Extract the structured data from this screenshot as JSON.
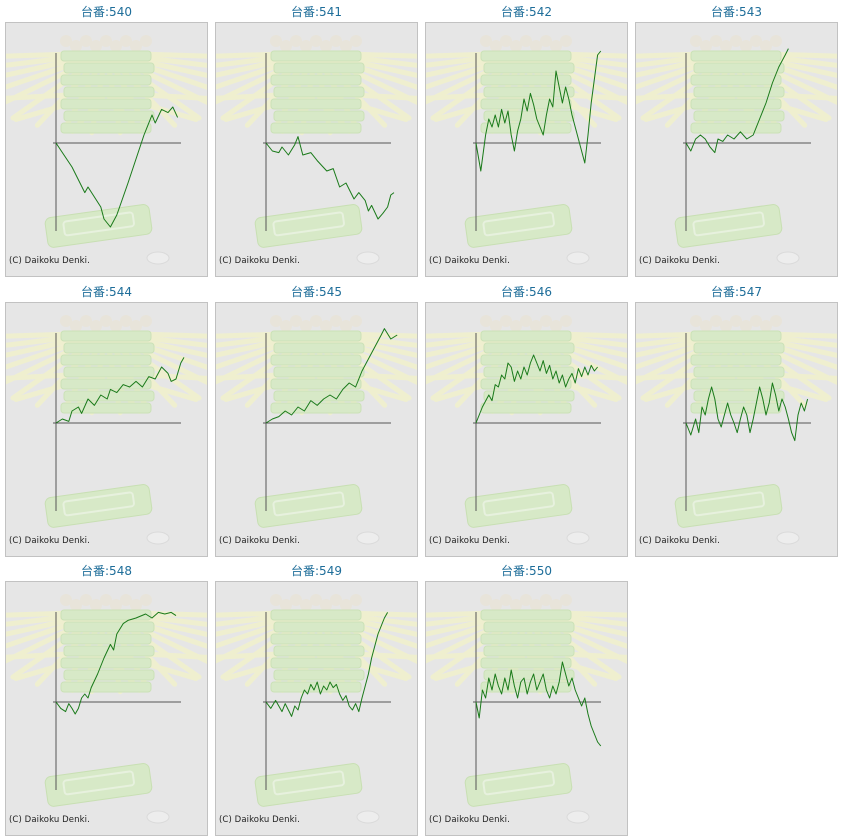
{
  "credit_text": "(C) Daikoku Denki.",
  "colors": {
    "line": "#1a7a1a",
    "axis": "#555555",
    "title": "#1f6e9a",
    "background": "#e6e6e6"
  },
  "chart_data": [
    {
      "type": "line",
      "title": "台番:540",
      "points": [
        [
          0,
          0
        ],
        [
          0.04,
          -0.12
        ],
        [
          0.1,
          -0.3
        ],
        [
          0.18,
          -0.62
        ],
        [
          0.2,
          -0.55
        ],
        [
          0.28,
          -0.8
        ],
        [
          0.3,
          -0.95
        ],
        [
          0.34,
          -1.05
        ],
        [
          0.38,
          -0.9
        ],
        [
          0.45,
          -0.5
        ],
        [
          0.5,
          -0.2
        ],
        [
          0.55,
          0.1
        ],
        [
          0.6,
          0.35
        ],
        [
          0.62,
          0.25
        ],
        [
          0.66,
          0.42
        ],
        [
          0.7,
          0.38
        ],
        [
          0.73,
          0.45
        ],
        [
          0.76,
          0.32
        ]
      ]
    },
    {
      "type": "line",
      "title": "台番:541",
      "points": [
        [
          0,
          0
        ],
        [
          0.04,
          -0.1
        ],
        [
          0.08,
          -0.12
        ],
        [
          0.1,
          -0.05
        ],
        [
          0.14,
          -0.15
        ],
        [
          0.18,
          -0.02
        ],
        [
          0.2,
          0.08
        ],
        [
          0.23,
          -0.15
        ],
        [
          0.28,
          -0.12
        ],
        [
          0.32,
          -0.22
        ],
        [
          0.38,
          -0.35
        ],
        [
          0.42,
          -0.32
        ],
        [
          0.46,
          -0.55
        ],
        [
          0.5,
          -0.5
        ],
        [
          0.55,
          -0.7
        ],
        [
          0.58,
          -0.62
        ],
        [
          0.62,
          -0.72
        ],
        [
          0.64,
          -0.85
        ],
        [
          0.66,
          -0.78
        ],
        [
          0.7,
          -0.95
        ],
        [
          0.73,
          -0.88
        ],
        [
          0.76,
          -0.8
        ],
        [
          0.78,
          -0.65
        ],
        [
          0.8,
          -0.62
        ]
      ]
    },
    {
      "type": "line",
      "title": "台番:542",
      "points": [
        [
          0,
          0
        ],
        [
          0.03,
          -0.35
        ],
        [
          0.06,
          0.1
        ],
        [
          0.08,
          0.3
        ],
        [
          0.1,
          0.2
        ],
        [
          0.12,
          0.35
        ],
        [
          0.14,
          0.2
        ],
        [
          0.16,
          0.42
        ],
        [
          0.18,
          0.25
        ],
        [
          0.2,
          0.4
        ],
        [
          0.22,
          0.1
        ],
        [
          0.24,
          -0.1
        ],
        [
          0.26,
          0.15
        ],
        [
          0.28,
          0.3
        ],
        [
          0.3,
          0.55
        ],
        [
          0.32,
          0.4
        ],
        [
          0.34,
          0.62
        ],
        [
          0.36,
          0.48
        ],
        [
          0.38,
          0.3
        ],
        [
          0.4,
          0.2
        ],
        [
          0.42,
          0.1
        ],
        [
          0.44,
          0.35
        ],
        [
          0.46,
          0.55
        ],
        [
          0.48,
          0.45
        ],
        [
          0.5,
          0.9
        ],
        [
          0.52,
          0.7
        ],
        [
          0.54,
          0.5
        ],
        [
          0.56,
          0.7
        ],
        [
          0.58,
          0.55
        ],
        [
          0.6,
          0.35
        ],
        [
          0.62,
          0.2
        ],
        [
          0.64,
          0.05
        ],
        [
          0.66,
          -0.1
        ],
        [
          0.68,
          -0.25
        ],
        [
          0.7,
          0.1
        ],
        [
          0.72,
          0.5
        ],
        [
          0.74,
          0.8
        ],
        [
          0.76,
          1.1
        ],
        [
          0.78,
          1.15
        ]
      ]
    },
    {
      "type": "line",
      "title": "台番:543",
      "points": [
        [
          0,
          0
        ],
        [
          0.03,
          -0.1
        ],
        [
          0.06,
          0.05
        ],
        [
          0.09,
          0.1
        ],
        [
          0.12,
          0.05
        ],
        [
          0.15,
          -0.05
        ],
        [
          0.18,
          -0.12
        ],
        [
          0.2,
          0.05
        ],
        [
          0.23,
          0.02
        ],
        [
          0.26,
          0.1
        ],
        [
          0.3,
          0.05
        ],
        [
          0.34,
          0.14
        ],
        [
          0.38,
          0.05
        ],
        [
          0.42,
          0.1
        ],
        [
          0.46,
          0.3
        ],
        [
          0.5,
          0.5
        ],
        [
          0.54,
          0.75
        ],
        [
          0.58,
          0.95
        ],
        [
          0.62,
          1.1
        ],
        [
          0.64,
          1.18
        ]
      ]
    },
    {
      "type": "line",
      "title": "台番:544",
      "points": [
        [
          0,
          0
        ],
        [
          0.04,
          0.05
        ],
        [
          0.08,
          0.02
        ],
        [
          0.1,
          0.15
        ],
        [
          0.14,
          0.2
        ],
        [
          0.16,
          0.12
        ],
        [
          0.2,
          0.3
        ],
        [
          0.24,
          0.22
        ],
        [
          0.28,
          0.35
        ],
        [
          0.32,
          0.3
        ],
        [
          0.34,
          0.42
        ],
        [
          0.38,
          0.38
        ],
        [
          0.42,
          0.48
        ],
        [
          0.46,
          0.45
        ],
        [
          0.5,
          0.52
        ],
        [
          0.54,
          0.45
        ],
        [
          0.58,
          0.58
        ],
        [
          0.62,
          0.55
        ],
        [
          0.66,
          0.7
        ],
        [
          0.7,
          0.62
        ],
        [
          0.72,
          0.52
        ],
        [
          0.75,
          0.55
        ],
        [
          0.78,
          0.75
        ],
        [
          0.8,
          0.82
        ]
      ]
    },
    {
      "type": "line",
      "title": "台番:545",
      "points": [
        [
          0,
          0
        ],
        [
          0.04,
          0.05
        ],
        [
          0.08,
          0.08
        ],
        [
          0.12,
          0.15
        ],
        [
          0.16,
          0.1
        ],
        [
          0.2,
          0.2
        ],
        [
          0.24,
          0.15
        ],
        [
          0.28,
          0.28
        ],
        [
          0.32,
          0.22
        ],
        [
          0.36,
          0.3
        ],
        [
          0.4,
          0.35
        ],
        [
          0.44,
          0.3
        ],
        [
          0.48,
          0.42
        ],
        [
          0.52,
          0.5
        ],
        [
          0.56,
          0.45
        ],
        [
          0.6,
          0.65
        ],
        [
          0.64,
          0.8
        ],
        [
          0.68,
          0.95
        ],
        [
          0.72,
          1.1
        ],
        [
          0.74,
          1.18
        ],
        [
          0.78,
          1.05
        ],
        [
          0.82,
          1.1
        ]
      ]
    },
    {
      "type": "line",
      "title": "台番:546",
      "points": [
        [
          0,
          0
        ],
        [
          0.04,
          0.2
        ],
        [
          0.08,
          0.35
        ],
        [
          0.1,
          0.28
        ],
        [
          0.12,
          0.48
        ],
        [
          0.14,
          0.45
        ],
        [
          0.16,
          0.6
        ],
        [
          0.18,
          0.55
        ],
        [
          0.2,
          0.75
        ],
        [
          0.22,
          0.7
        ],
        [
          0.24,
          0.52
        ],
        [
          0.26,
          0.65
        ],
        [
          0.28,
          0.55
        ],
        [
          0.3,
          0.7
        ],
        [
          0.32,
          0.6
        ],
        [
          0.34,
          0.75
        ],
        [
          0.36,
          0.85
        ],
        [
          0.38,
          0.75
        ],
        [
          0.4,
          0.65
        ],
        [
          0.42,
          0.78
        ],
        [
          0.44,
          0.62
        ],
        [
          0.46,
          0.72
        ],
        [
          0.48,
          0.55
        ],
        [
          0.5,
          0.65
        ],
        [
          0.52,
          0.5
        ],
        [
          0.54,
          0.6
        ],
        [
          0.56,
          0.45
        ],
        [
          0.58,
          0.55
        ],
        [
          0.6,
          0.62
        ],
        [
          0.62,
          0.5
        ],
        [
          0.64,
          0.68
        ],
        [
          0.66,
          0.58
        ],
        [
          0.68,
          0.7
        ],
        [
          0.7,
          0.6
        ],
        [
          0.72,
          0.72
        ],
        [
          0.74,
          0.65
        ],
        [
          0.76,
          0.7
        ]
      ]
    },
    {
      "type": "line",
      "title": "台番:547",
      "points": [
        [
          0,
          0
        ],
        [
          0.03,
          -0.15
        ],
        [
          0.06,
          0.05
        ],
        [
          0.08,
          -0.12
        ],
        [
          0.1,
          0.2
        ],
        [
          0.12,
          0.1
        ],
        [
          0.14,
          0.3
        ],
        [
          0.16,
          0.45
        ],
        [
          0.18,
          0.3
        ],
        [
          0.2,
          0.05
        ],
        [
          0.22,
          -0.05
        ],
        [
          0.24,
          0.1
        ],
        [
          0.26,
          0.25
        ],
        [
          0.28,
          0.1
        ],
        [
          0.3,
          0.0
        ],
        [
          0.32,
          -0.12
        ],
        [
          0.34,
          0.05
        ],
        [
          0.36,
          0.2
        ],
        [
          0.38,
          0.1
        ],
        [
          0.4,
          -0.12
        ],
        [
          0.42,
          0.05
        ],
        [
          0.44,
          0.25
        ],
        [
          0.46,
          0.45
        ],
        [
          0.48,
          0.3
        ],
        [
          0.5,
          0.1
        ],
        [
          0.52,
          0.25
        ],
        [
          0.54,
          0.5
        ],
        [
          0.56,
          0.35
        ],
        [
          0.58,
          0.15
        ],
        [
          0.6,
          0.3
        ],
        [
          0.62,
          0.2
        ],
        [
          0.64,
          0.05
        ],
        [
          0.66,
          -0.12
        ],
        [
          0.68,
          -0.22
        ],
        [
          0.7,
          0.1
        ],
        [
          0.72,
          0.25
        ],
        [
          0.74,
          0.15
        ],
        [
          0.76,
          0.3
        ]
      ]
    },
    {
      "type": "line",
      "title": "台番:548",
      "points": [
        [
          0,
          0
        ],
        [
          0.03,
          -0.08
        ],
        [
          0.06,
          -0.12
        ],
        [
          0.08,
          -0.02
        ],
        [
          0.1,
          -0.08
        ],
        [
          0.12,
          -0.15
        ],
        [
          0.14,
          -0.08
        ],
        [
          0.16,
          0.05
        ],
        [
          0.18,
          0.1
        ],
        [
          0.2,
          0.05
        ],
        [
          0.22,
          0.18
        ],
        [
          0.26,
          0.35
        ],
        [
          0.3,
          0.55
        ],
        [
          0.34,
          0.72
        ],
        [
          0.36,
          0.65
        ],
        [
          0.38,
          0.85
        ],
        [
          0.42,
          0.98
        ],
        [
          0.45,
          1.02
        ],
        [
          0.5,
          1.05
        ],
        [
          0.56,
          1.1
        ],
        [
          0.6,
          1.05
        ],
        [
          0.64,
          1.12
        ],
        [
          0.68,
          1.1
        ],
        [
          0.72,
          1.12
        ],
        [
          0.75,
          1.08
        ]
      ]
    },
    {
      "type": "line",
      "title": "台番:549",
      "points": [
        [
          0,
          0
        ],
        [
          0.03,
          -0.08
        ],
        [
          0.06,
          0.02
        ],
        [
          0.08,
          -0.05
        ],
        [
          0.1,
          -0.12
        ],
        [
          0.12,
          -0.02
        ],
        [
          0.14,
          -0.1
        ],
        [
          0.16,
          -0.18
        ],
        [
          0.18,
          -0.05
        ],
        [
          0.2,
          -0.1
        ],
        [
          0.22,
          0.05
        ],
        [
          0.24,
          0.15
        ],
        [
          0.26,
          0.1
        ],
        [
          0.28,
          0.22
        ],
        [
          0.3,
          0.15
        ],
        [
          0.32,
          0.25
        ],
        [
          0.34,
          0.1
        ],
        [
          0.36,
          0.2
        ],
        [
          0.38,
          0.15
        ],
        [
          0.4,
          0.25
        ],
        [
          0.42,
          0.18
        ],
        [
          0.44,
          0.22
        ],
        [
          0.46,
          0.1
        ],
        [
          0.48,
          0.02
        ],
        [
          0.5,
          0.08
        ],
        [
          0.52,
          -0.05
        ],
        [
          0.54,
          -0.1
        ],
        [
          0.56,
          -0.02
        ],
        [
          0.58,
          -0.12
        ],
        [
          0.6,
          0.05
        ],
        [
          0.62,
          0.2
        ],
        [
          0.64,
          0.35
        ],
        [
          0.66,
          0.55
        ],
        [
          0.68,
          0.7
        ],
        [
          0.7,
          0.85
        ],
        [
          0.72,
          0.95
        ],
        [
          0.74,
          1.05
        ],
        [
          0.76,
          1.12
        ]
      ]
    },
    {
      "type": "line",
      "title": "台番:550",
      "points": [
        [
          0,
          0
        ],
        [
          0.02,
          -0.2
        ],
        [
          0.04,
          0.15
        ],
        [
          0.06,
          0.05
        ],
        [
          0.08,
          0.3
        ],
        [
          0.1,
          0.15
        ],
        [
          0.12,
          0.35
        ],
        [
          0.14,
          0.2
        ],
        [
          0.16,
          0.1
        ],
        [
          0.18,
          0.3
        ],
        [
          0.2,
          0.15
        ],
        [
          0.22,
          0.4
        ],
        [
          0.24,
          0.2
        ],
        [
          0.26,
          0.05
        ],
        [
          0.28,
          0.25
        ],
        [
          0.3,
          0.3
        ],
        [
          0.32,
          0.1
        ],
        [
          0.34,
          0.25
        ],
        [
          0.36,
          0.35
        ],
        [
          0.38,
          0.15
        ],
        [
          0.4,
          0.25
        ],
        [
          0.42,
          0.35
        ],
        [
          0.44,
          0.15
        ],
        [
          0.46,
          0.05
        ],
        [
          0.48,
          0.2
        ],
        [
          0.5,
          0.1
        ],
        [
          0.52,
          0.25
        ],
        [
          0.54,
          0.5
        ],
        [
          0.56,
          0.35
        ],
        [
          0.58,
          0.2
        ],
        [
          0.6,
          0.3
        ],
        [
          0.62,
          0.15
        ],
        [
          0.64,
          0.05
        ],
        [
          0.66,
          -0.05
        ],
        [
          0.68,
          0.05
        ],
        [
          0.7,
          -0.15
        ],
        [
          0.72,
          -0.3
        ],
        [
          0.74,
          -0.4
        ],
        [
          0.76,
          -0.5
        ],
        [
          0.78,
          -0.55
        ]
      ]
    }
  ]
}
